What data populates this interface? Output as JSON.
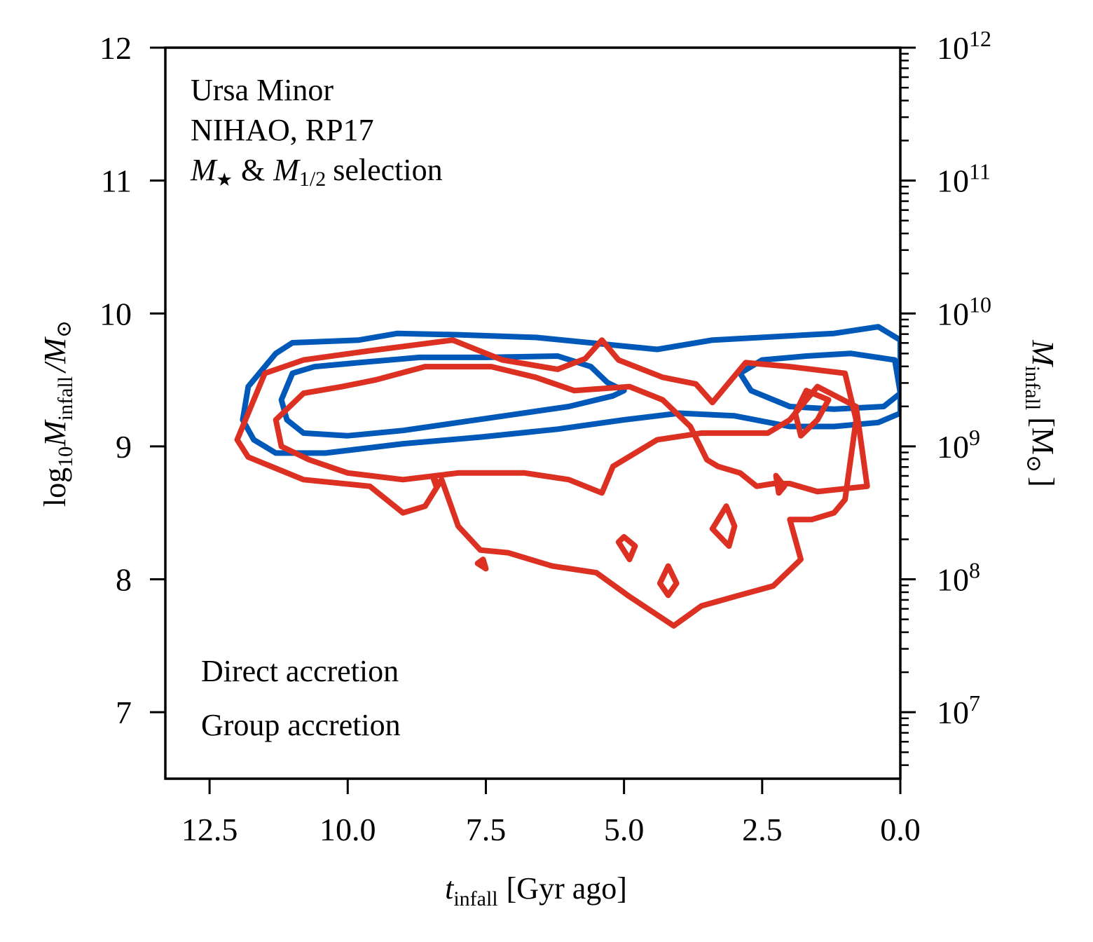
{
  "chart_data": {
    "type": "contour",
    "annotation": [
      "Ursa Minor",
      "NIHAO, RP17",
      "M★ & M1/2 selection"
    ],
    "annotation_parts": {
      "mstar_symbol": "M",
      "mstar_sub": "★",
      "amp": "&",
      "mhalf_symbol": "M",
      "mhalf_sub": "1/2",
      "selection": "selection"
    },
    "xlabel": {
      "symbol": "t",
      "sub": "infall",
      "unit": "[Gyr ago]"
    },
    "ylabel": {
      "prefix": "log",
      "prefix_sub": "10",
      "symbol": "M",
      "sub": "infall",
      "rest": "/M",
      "sun": "⊙"
    },
    "y2label": {
      "symbol": "M",
      "sub": "infall",
      "rest": "[M",
      "sun": "⊙",
      "close": "]"
    },
    "xlim": [
      13.3,
      0.0
    ],
    "ylim": [
      6.5,
      12.0
    ],
    "xticks": [
      12.5,
      10.0,
      7.5,
      5.0,
      2.5,
      0.0
    ],
    "xtick_labels": [
      "12.5",
      "10.0",
      "7.5",
      "5.0",
      "2.5",
      "0.0"
    ],
    "yticks": [
      7,
      8,
      9,
      10,
      11,
      12
    ],
    "ytick_labels": [
      "7",
      "8",
      "9",
      "10",
      "11",
      "12"
    ],
    "y2ticks": [
      7,
      8,
      9,
      10,
      11,
      12
    ],
    "y2tick_labels": [
      {
        "base": "10",
        "exp": "7"
      },
      {
        "base": "10",
        "exp": "8"
      },
      {
        "base": "10",
        "exp": "9"
      },
      {
        "base": "10",
        "exp": "10"
      },
      {
        "base": "10",
        "exp": "11"
      },
      {
        "base": "10",
        "exp": "12"
      }
    ],
    "legend": [
      {
        "name": "Direct accretion",
        "color": "#0059b8"
      },
      {
        "name": "Group accretion",
        "color": "#dc3122"
      }
    ],
    "series": [
      {
        "name": "Direct accretion",
        "color": "#0059b8",
        "contours": [
          [
            [
              11.9,
              9.2
            ],
            [
              11.8,
              9.45
            ],
            [
              11.3,
              9.7
            ],
            [
              11.0,
              9.78
            ],
            [
              9.8,
              9.8
            ],
            [
              9.1,
              9.85
            ],
            [
              8.0,
              9.84
            ],
            [
              6.6,
              9.82
            ],
            [
              4.4,
              9.73
            ],
            [
              3.4,
              9.8
            ],
            [
              1.2,
              9.85
            ],
            [
              0.4,
              9.9
            ],
            [
              0.0,
              9.8
            ],
            [
              0.0,
              9.25
            ],
            [
              0.4,
              9.18
            ],
            [
              1.2,
              9.15
            ],
            [
              2.0,
              9.15
            ],
            [
              3.0,
              9.23
            ],
            [
              4.0,
              9.25
            ],
            [
              5.0,
              9.2
            ],
            [
              6.2,
              9.13
            ],
            [
              7.6,
              9.07
            ],
            [
              9.0,
              9.02
            ],
            [
              10.4,
              8.95
            ],
            [
              11.3,
              8.95
            ],
            [
              11.7,
              9.05
            ],
            [
              11.9,
              9.2
            ]
          ],
          [
            [
              11.2,
              9.35
            ],
            [
              11.0,
              9.55
            ],
            [
              10.6,
              9.6
            ],
            [
              9.8,
              9.63
            ],
            [
              8.7,
              9.67
            ],
            [
              7.5,
              9.67
            ],
            [
              6.2,
              9.68
            ],
            [
              5.6,
              9.6
            ],
            [
              5.3,
              9.48
            ],
            [
              5.0,
              9.42
            ],
            [
              5.2,
              9.38
            ],
            [
              6.0,
              9.3
            ],
            [
              7.0,
              9.24
            ],
            [
              8.0,
              9.18
            ],
            [
              9.0,
              9.12
            ],
            [
              10.0,
              9.08
            ],
            [
              10.8,
              9.1
            ],
            [
              11.1,
              9.2
            ],
            [
              11.2,
              9.35
            ]
          ],
          [
            [
              2.9,
              9.55
            ],
            [
              2.5,
              9.65
            ],
            [
              1.7,
              9.68
            ],
            [
              0.9,
              9.7
            ],
            [
              0.1,
              9.65
            ],
            [
              0.0,
              9.4
            ],
            [
              0.3,
              9.3
            ],
            [
              1.2,
              9.28
            ],
            [
              2.0,
              9.3
            ],
            [
              2.7,
              9.42
            ],
            [
              2.9,
              9.55
            ]
          ]
        ]
      },
      {
        "name": "Group accretion",
        "color": "#dc3122",
        "contours": [
          [
            [
              12.0,
              9.05
            ],
            [
              11.5,
              9.55
            ],
            [
              10.8,
              9.65
            ],
            [
              9.6,
              9.72
            ],
            [
              8.1,
              9.8
            ],
            [
              7.2,
              9.65
            ],
            [
              6.2,
              9.58
            ],
            [
              5.7,
              9.66
            ],
            [
              5.4,
              9.8
            ],
            [
              5.1,
              9.65
            ],
            [
              4.3,
              9.52
            ],
            [
              3.7,
              9.47
            ],
            [
              3.4,
              9.33
            ],
            [
              2.8,
              9.63
            ],
            [
              2.0,
              9.6
            ],
            [
              1.0,
              9.55
            ],
            [
              0.8,
              9.2
            ],
            [
              1.0,
              8.6
            ],
            [
              1.2,
              8.5
            ],
            [
              1.6,
              8.45
            ],
            [
              2.0,
              8.45
            ],
            [
              1.8,
              8.15
            ],
            [
              2.3,
              7.95
            ],
            [
              3.0,
              7.87
            ],
            [
              3.6,
              7.8
            ],
            [
              4.1,
              7.65
            ],
            [
              4.9,
              7.87
            ],
            [
              5.5,
              8.05
            ],
            [
              6.3,
              8.1
            ],
            [
              7.1,
              8.2
            ],
            [
              7.6,
              8.22
            ],
            [
              8.0,
              8.4
            ],
            [
              8.3,
              8.75
            ],
            [
              8.6,
              8.55
            ],
            [
              9.0,
              8.5
            ],
            [
              9.6,
              8.7
            ],
            [
              10.8,
              8.75
            ],
            [
              11.8,
              8.92
            ],
            [
              12.0,
              9.05
            ]
          ],
          [
            [
              11.3,
              9.2
            ],
            [
              10.8,
              9.4
            ],
            [
              10.1,
              9.45
            ],
            [
              9.5,
              9.5
            ],
            [
              8.6,
              9.6
            ],
            [
              7.4,
              9.6
            ],
            [
              6.6,
              9.52
            ],
            [
              5.9,
              9.42
            ],
            [
              4.9,
              9.45
            ],
            [
              4.3,
              9.35
            ],
            [
              3.8,
              9.15
            ],
            [
              3.5,
              8.9
            ],
            [
              3.3,
              8.85
            ],
            [
              2.9,
              8.8
            ],
            [
              2.6,
              8.7
            ],
            [
              2.3,
              8.72
            ],
            [
              2.0,
              8.72
            ],
            [
              1.5,
              8.66
            ],
            [
              0.6,
              8.7
            ],
            [
              0.8,
              9.3
            ],
            [
              1.5,
              9.45
            ],
            [
              2.0,
              9.2
            ],
            [
              2.4,
              9.1
            ],
            [
              3.0,
              9.1
            ],
            [
              3.6,
              9.1
            ],
            [
              4.4,
              9.05
            ],
            [
              5.2,
              8.85
            ],
            [
              5.4,
              8.65
            ],
            [
              6.0,
              8.75
            ],
            [
              6.8,
              8.8
            ],
            [
              7.5,
              8.8
            ],
            [
              8.0,
              8.8
            ],
            [
              9.0,
              8.75
            ],
            [
              10.0,
              8.8
            ],
            [
              10.7,
              8.9
            ],
            [
              11.2,
              9.0
            ],
            [
              11.3,
              9.2
            ]
          ],
          [
            [
              3.15,
              8.55
            ],
            [
              3.4,
              8.38
            ],
            [
              3.1,
              8.25
            ],
            [
              3.0,
              8.4
            ],
            [
              3.15,
              8.55
            ]
          ],
          [
            [
              5.1,
              8.28
            ],
            [
              4.9,
              8.15
            ],
            [
              4.8,
              8.25
            ],
            [
              5.0,
              8.32
            ],
            [
              5.1,
              8.28
            ]
          ],
          [
            [
              4.2,
              8.1
            ],
            [
              4.35,
              7.97
            ],
            [
              4.2,
              7.88
            ],
            [
              4.05,
              7.97
            ],
            [
              4.2,
              8.1
            ]
          ],
          [
            [
              1.7,
              9.42
            ],
            [
              1.3,
              9.35
            ],
            [
              1.5,
              9.2
            ],
            [
              1.8,
              9.08
            ],
            [
              1.9,
              9.25
            ],
            [
              1.7,
              9.42
            ]
          ],
          [
            [
              8.45,
              8.76
            ],
            [
              8.35,
              8.72
            ],
            [
              8.4,
              8.7
            ],
            [
              8.45,
              8.76
            ]
          ],
          [
            [
              7.65,
              8.12
            ],
            [
              7.5,
              8.08
            ],
            [
              7.55,
              8.15
            ],
            [
              7.65,
              8.12
            ]
          ],
          [
            [
              2.25,
              8.78
            ],
            [
              2.1,
              8.7
            ],
            [
              2.2,
              8.65
            ],
            [
              2.25,
              8.78
            ]
          ]
        ]
      }
    ]
  }
}
